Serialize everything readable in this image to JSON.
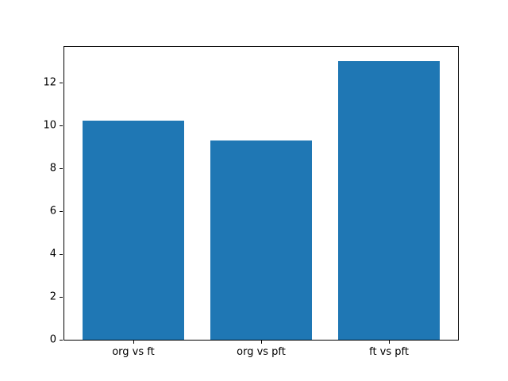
{
  "chart_data": {
    "type": "bar",
    "title": "",
    "xlabel": "",
    "ylabel": "",
    "categories": [
      "org vs ft",
      "org vs pft",
      "ft vs pft"
    ],
    "values": [
      10.2,
      9.3,
      13.0
    ],
    "yticks": [
      0,
      2,
      4,
      6,
      8,
      10,
      12
    ],
    "ylim": [
      0,
      13.65
    ],
    "xlim": [
      -0.54,
      2.54
    ],
    "bar_width": 0.8,
    "bar_color": "#1f77b4",
    "axis_color": "#000000",
    "background_color": "#ffffff",
    "grid": false,
    "legend": null
  }
}
